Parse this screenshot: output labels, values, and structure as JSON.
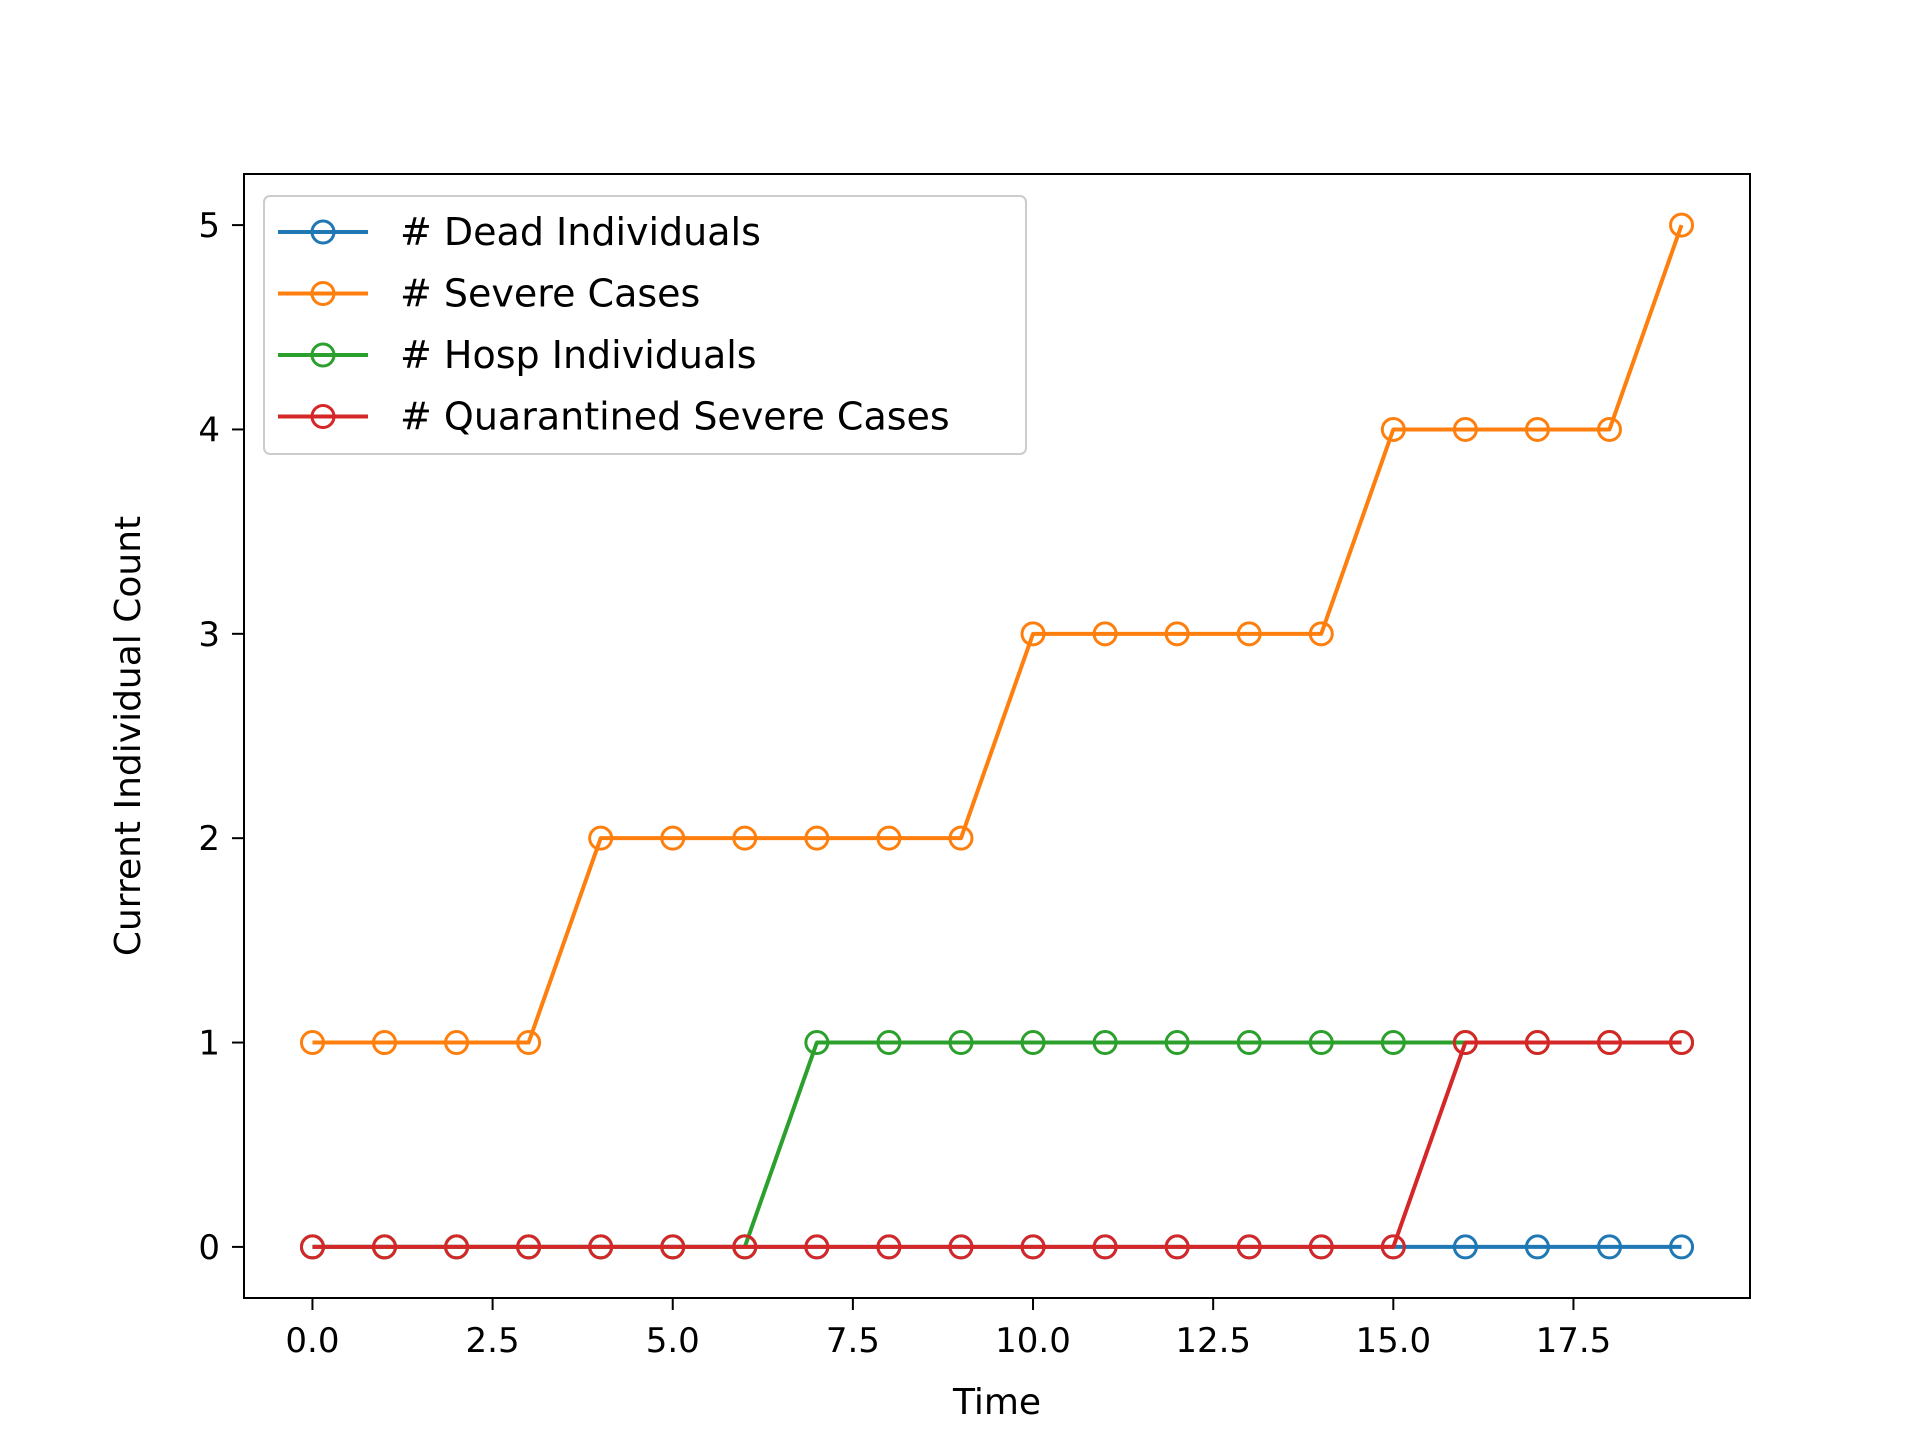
{
  "chart_data": {
    "type": "line",
    "title": "",
    "xlabel": "Time",
    "ylabel": "Current Individual Count",
    "xlim": [
      -0.95,
      19.95
    ],
    "ylim": [
      -0.25,
      5.25
    ],
    "x_ticks": [
      0.0,
      2.5,
      5.0,
      7.5,
      10.0,
      12.5,
      15.0,
      17.5
    ],
    "x_tick_labels": [
      "0.0",
      "2.5",
      "5.0",
      "7.5",
      "10.0",
      "12.5",
      "15.0",
      "17.5"
    ],
    "y_ticks": [
      0,
      1,
      2,
      3,
      4,
      5
    ],
    "y_tick_labels": [
      "0",
      "1",
      "2",
      "3",
      "4",
      "5"
    ],
    "grid": false,
    "legend_position": "top-left",
    "marker": "open-circle",
    "x": [
      0,
      1,
      2,
      3,
      4,
      5,
      6,
      7,
      8,
      9,
      10,
      11,
      12,
      13,
      14,
      15,
      16,
      17,
      18,
      19
    ],
    "series": [
      {
        "name": "# Dead Individuals",
        "color": "#1f77b4",
        "values": [
          0,
          0,
          0,
          0,
          0,
          0,
          0,
          0,
          0,
          0,
          0,
          0,
          0,
          0,
          0,
          0,
          0,
          0,
          0,
          0
        ]
      },
      {
        "name": "# Severe Cases",
        "color": "#ff7f0e",
        "values": [
          1,
          1,
          1,
          1,
          2,
          2,
          2,
          2,
          2,
          2,
          3,
          3,
          3,
          3,
          3,
          4,
          4,
          4,
          4,
          5
        ]
      },
      {
        "name": "# Hosp Individuals",
        "color": "#2ca02c",
        "values": [
          0,
          0,
          0,
          0,
          0,
          0,
          0,
          1,
          1,
          1,
          1,
          1,
          1,
          1,
          1,
          1,
          1,
          1,
          1,
          1
        ]
      },
      {
        "name": "# Quarantined Severe Cases",
        "color": "#d62728",
        "values": [
          0,
          0,
          0,
          0,
          0,
          0,
          0,
          0,
          0,
          0,
          0,
          0,
          0,
          0,
          0,
          0,
          1,
          1,
          1,
          1
        ]
      }
    ]
  }
}
